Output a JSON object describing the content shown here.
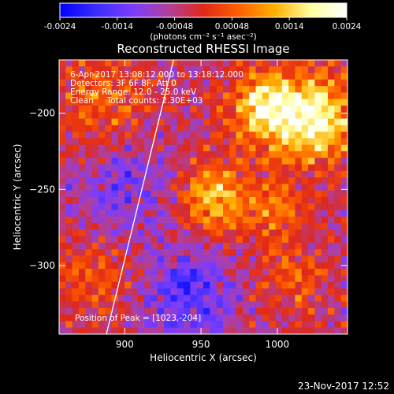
{
  "colorbar": {
    "ticks": [
      "-0.0024",
      "-0.0014",
      "-0.00048",
      "0.00048",
      "0.0014",
      "0.0024"
    ],
    "units_label": "(photons cm⁻² s⁻¹ asec⁻²)",
    "colors": [
      "#0000ff",
      "#3a2cff",
      "#7a3cff",
      "#b040a0",
      "#e02818",
      "#ff6000",
      "#ffb000",
      "#ffffa0",
      "#ffffff"
    ]
  },
  "chart_data": {
    "type": "heatmap",
    "title": "Reconstructed RHESSI Image",
    "xlabel": "Heliocentric X (arcsec)",
    "ylabel": "Heliocentric Y (arcsec)",
    "xlim": [
      857,
      1046
    ],
    "ylim": [
      -345,
      -165
    ],
    "x_ticks": [
      900,
      950,
      1000
    ],
    "y_ticks": [
      -200,
      -250,
      -300
    ],
    "value_range": [
      -0.0024,
      0.0024
    ],
    "annotations": [
      "6-Apr-2017 13:08:12.000 to 13:18:12.000",
      "Detectors: 3F 6F 8F, Att 0",
      "Energy Range: 12.0 - 25.0 keV",
      "Clean     Total counts: 2.30E+03"
    ],
    "peak_label": "Position of Peak = [1023,-204]",
    "peak": {
      "x": 1023,
      "y": -204
    },
    "grid": false,
    "limb_line": [
      [
        932,
        -165
      ],
      [
        888,
        -345
      ]
    ],
    "sources": [
      {
        "x": 1023,
        "y": -204,
        "peak": 0.0024,
        "sigma": 20
      },
      {
        "x": 990,
        "y": -195,
        "peak": 0.0019,
        "sigma": 15
      },
      {
        "x": 960,
        "y": -255,
        "peak": 0.0017,
        "sigma": 16
      },
      {
        "x": 1000,
        "y": -265,
        "peak": 0.001,
        "sigma": 14
      },
      {
        "x": 1010,
        "y": -310,
        "peak": 0.0008,
        "sigma": 14
      },
      {
        "x": 885,
        "y": -195,
        "peak": 0.0009,
        "sigma": 22
      },
      {
        "x": 880,
        "y": -305,
        "peak": 0.0008,
        "sigma": 20
      },
      {
        "x": 940,
        "y": -320,
        "peak": -0.0012,
        "sigma": 22
      },
      {
        "x": 900,
        "y": -250,
        "peak": -0.0008,
        "sigma": 25
      }
    ]
  },
  "footer": {
    "timestamp": "23-Nov-2017 12:52"
  }
}
